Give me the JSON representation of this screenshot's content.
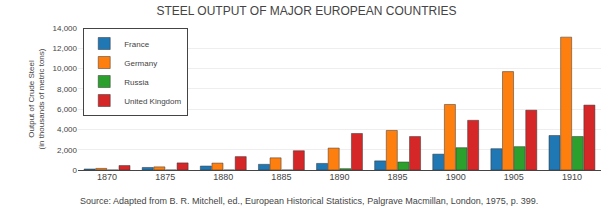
{
  "chart_data": {
    "type": "bar",
    "title": "STEEL OUTPUT OF MAJOR EUROPEAN COUNTRIES",
    "ylabel": "Output of Crude Steel\n(in thousands of metric tons)",
    "categories": [
      "1870",
      "1875",
      "1880",
      "1885",
      "1890",
      "1895",
      "1900",
      "1905",
      "1910"
    ],
    "series": [
      {
        "name": "France",
        "values": [
          100,
          250,
          390,
          560,
          650,
          900,
          1565,
          2100,
          3400
        ]
      },
      {
        "name": "Germany",
        "values": [
          160,
          310,
          680,
          1200,
          2160,
          3900,
          6460,
          9700,
          13100
        ]
      },
      {
        "name": "Russia",
        "values": [
          0,
          0,
          0,
          0,
          130,
          790,
          2200,
          2300,
          3300
        ]
      },
      {
        "name": "United Kingdom",
        "values": [
          440,
          700,
          1320,
          1900,
          3600,
          3300,
          4900,
          5900,
          6400
        ]
      }
    ],
    "ylim": [
      0,
      14000
    ],
    "yticks": [
      0,
      {
        "value": 2000,
        "label": "2,000"
      },
      {
        "value": 4000,
        "label": "4,000"
      },
      {
        "value": 6000,
        "label": "6,000"
      },
      {
        "value": 8000,
        "label": "8,000"
      },
      {
        "value": 10000,
        "label": "10,000"
      },
      {
        "value": 12000,
        "label": "12,000"
      },
      {
        "value": 14000,
        "label": "14,000"
      }
    ],
    "grid": true,
    "legend": "upper left",
    "annotations": [
      "Source: Adapted from B. R. Mitchell, ed., European Historical Statistics, Palgrave Macmillan, London, 1975, p. 399."
    ]
  }
}
